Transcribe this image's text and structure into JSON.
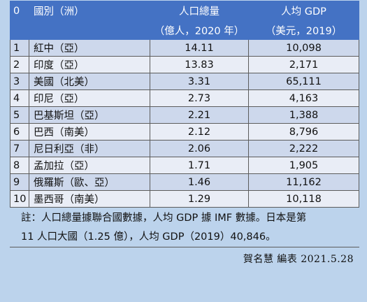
{
  "header": {
    "rank_label": "0",
    "country_label": "國別（洲）",
    "pop_label": "人口總量",
    "pop_unit": "（億人，2020 年）",
    "gdp_label": "人均 GDP",
    "gdp_unit": "（美元，2019）"
  },
  "rows": [
    {
      "rank": "1",
      "country": "紅中（亞）",
      "pop": "14.11",
      "gdp": "10,098"
    },
    {
      "rank": "2",
      "country": "印度（亞）",
      "pop": "13.83",
      "gdp": "2,171"
    },
    {
      "rank": "3",
      "country": "美國（北美）",
      "pop": "3.31",
      "gdp": "65,111"
    },
    {
      "rank": "4",
      "country": "印尼（亞）",
      "pop": "2.73",
      "gdp": "4,163"
    },
    {
      "rank": "5",
      "country": "巴基斯坦（亞）",
      "pop": "2.21",
      "gdp": "1,388"
    },
    {
      "rank": "6",
      "country": "巴西（南美）",
      "pop": "2.12",
      "gdp": "8,796"
    },
    {
      "rank": "7",
      "country": "尼日利亞（非）",
      "pop": "2.06",
      "gdp": "2,222"
    },
    {
      "rank": "8",
      "country": "孟加拉（亞）",
      "pop": "1.71",
      "gdp": "1,905"
    },
    {
      "rank": "9",
      "country": "俄羅斯（歐、亞）",
      "pop": "1.46",
      "gdp": "11,162"
    },
    {
      "rank": "10",
      "country": "墨西哥（南美）",
      "pop": "1.29",
      "gdp": "10,118"
    }
  ],
  "note": {
    "line1": "註：人口總量據聯合國數據，人均 GDP 據 IMF 數據。日本是第",
    "line2": "11 人口大國（1.25 億），人均 GDP（2019）40,846。"
  },
  "signature": "賀名慧  編表  2021.5.28"
}
